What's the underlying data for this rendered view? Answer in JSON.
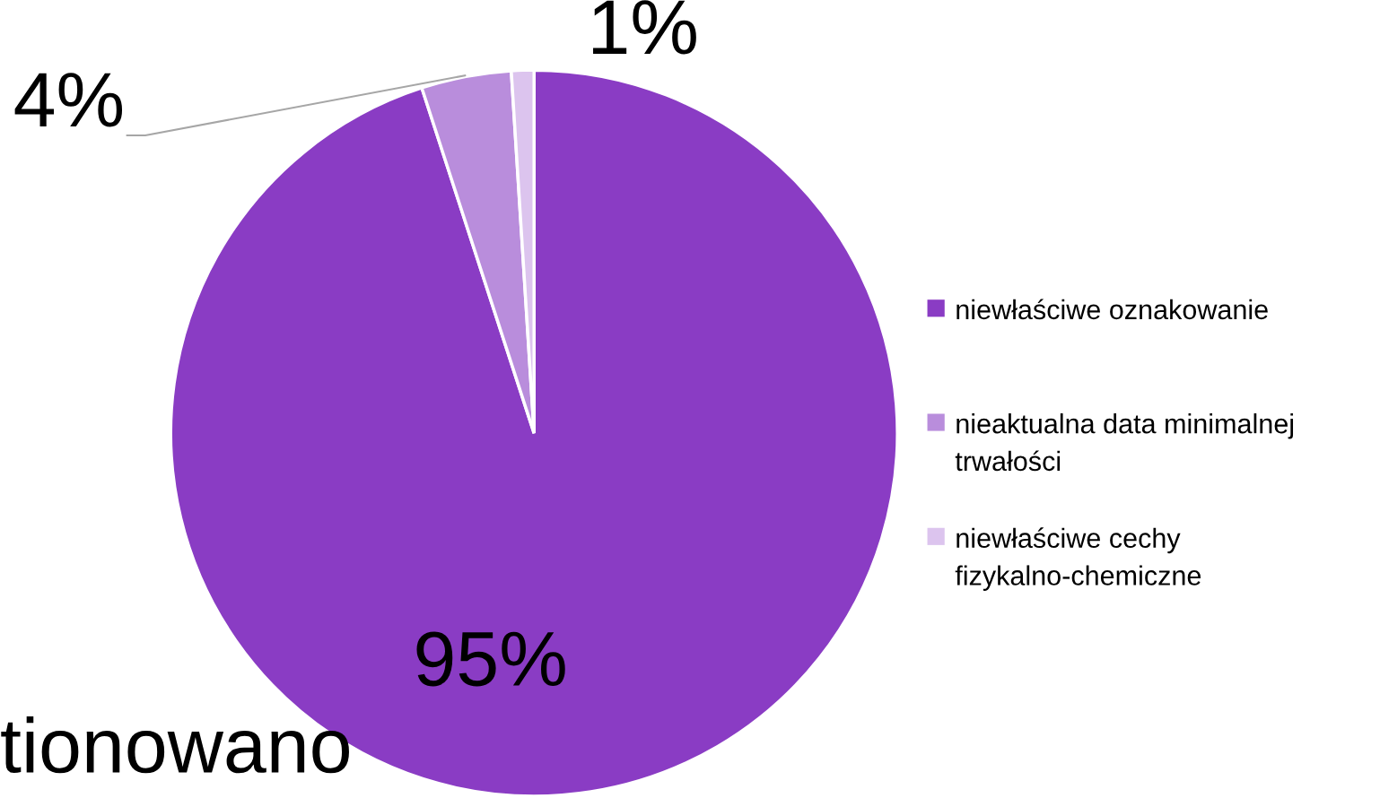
{
  "chart_data": {
    "type": "pie",
    "categories": [
      "niewłaściwe oznakowanie",
      "nieaktualna data minimalnej trwałości",
      "niewłaściwe cechy fizykalno-chemiczne"
    ],
    "values": [
      95,
      4,
      1
    ],
    "colors": [
      "#8a3cc4",
      "#b98ddc",
      "#dcc4ee"
    ],
    "value_labels": [
      "95%",
      "4%",
      "1%"
    ],
    "legend": "right",
    "annotations": [
      "tionowano"
    ]
  }
}
